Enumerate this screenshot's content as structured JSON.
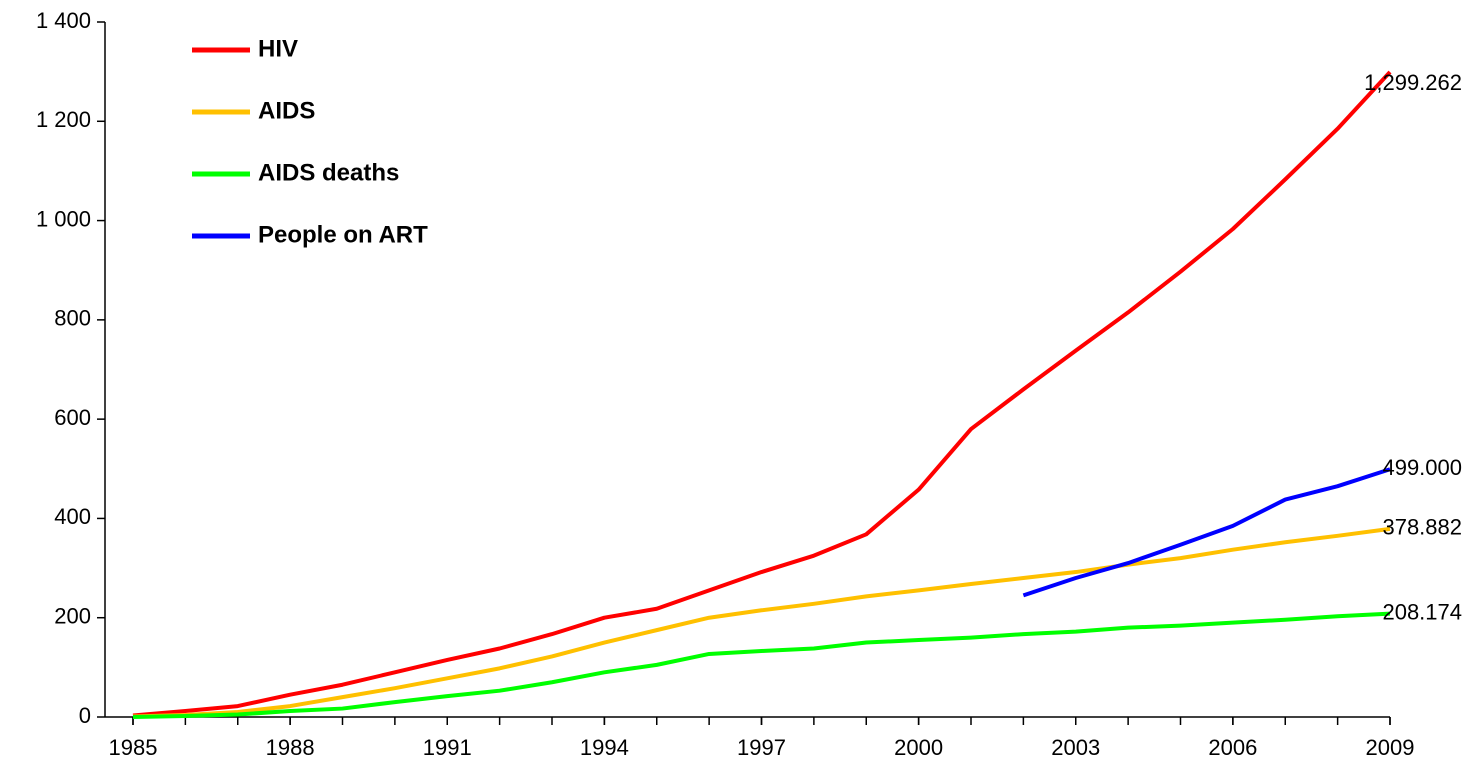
{
  "chart_data": {
    "type": "line",
    "x": [
      1985,
      1986,
      1987,
      1988,
      1989,
      1990,
      1991,
      1992,
      1993,
      1994,
      1995,
      1996,
      1997,
      1998,
      1999,
      2000,
      2001,
      2002,
      2003,
      2004,
      2005,
      2006,
      2007,
      2008,
      2009
    ],
    "series": [
      {
        "name": "HIV",
        "color": "#ff0000",
        "values": [
          3,
          12,
          22,
          45,
          65,
          90,
          115,
          138,
          167,
          200,
          218,
          255,
          292,
          325,
          368,
          458,
          580,
          660,
          738,
          815,
          897,
          983,
          1083,
          1185,
          1299.262
        ],
        "value_labels": [
          null,
          null,
          null,
          null,
          null,
          null,
          null,
          null,
          null,
          null,
          null,
          null,
          null,
          null,
          null,
          null,
          null,
          null,
          null,
          null,
          null,
          null,
          null,
          null,
          "1,299.262"
        ]
      },
      {
        "name": "AIDS",
        "color": "#ffc000",
        "values": [
          1,
          4,
          10,
          22,
          40,
          58,
          78,
          98,
          122,
          150,
          175,
          200,
          215,
          228,
          243,
          255,
          268,
          280,
          292,
          307,
          320,
          337,
          352,
          365,
          378.882
        ],
        "value_labels": [
          null,
          null,
          null,
          null,
          null,
          null,
          null,
          null,
          null,
          null,
          null,
          null,
          null,
          null,
          null,
          null,
          null,
          null,
          null,
          null,
          null,
          null,
          null,
          null,
          "378.882"
        ]
      },
      {
        "name": "AIDS deaths",
        "color": "#00ff00",
        "values": [
          0,
          2,
          5,
          12,
          17,
          30,
          42,
          53,
          70,
          90,
          105,
          127,
          133,
          138,
          150,
          155,
          160,
          167,
          172,
          180,
          184,
          190,
          196,
          203,
          208.174
        ],
        "value_labels": [
          null,
          null,
          null,
          null,
          null,
          null,
          null,
          null,
          null,
          null,
          null,
          null,
          null,
          null,
          null,
          null,
          null,
          null,
          null,
          null,
          null,
          null,
          null,
          null,
          "208.174"
        ]
      },
      {
        "name": "People on ART",
        "color": "#0000ff",
        "values": [
          null,
          null,
          null,
          null,
          null,
          null,
          null,
          null,
          null,
          null,
          null,
          null,
          null,
          null,
          null,
          null,
          null,
          245,
          280,
          310,
          347,
          385,
          438,
          465,
          499
        ],
        "value_labels": [
          null,
          null,
          null,
          null,
          null,
          null,
          null,
          null,
          null,
          null,
          null,
          null,
          null,
          null,
          null,
          null,
          null,
          null,
          null,
          null,
          null,
          null,
          null,
          null,
          "499.000"
        ]
      }
    ],
    "xlim": [
      1985,
      2009
    ],
    "xticks": [
      1985,
      1988,
      1991,
      1994,
      1997,
      2000,
      2003,
      2006,
      2009
    ],
    "ylim": [
      0,
      1400
    ],
    "yticks": [
      0,
      200,
      400,
      600,
      800,
      {
        "value": 1000,
        "label": "1 000"
      },
      {
        "value": 1200,
        "label": "1 200"
      },
      {
        "value": 1400,
        "label": "1 400"
      }
    ],
    "legend": "upper left"
  }
}
